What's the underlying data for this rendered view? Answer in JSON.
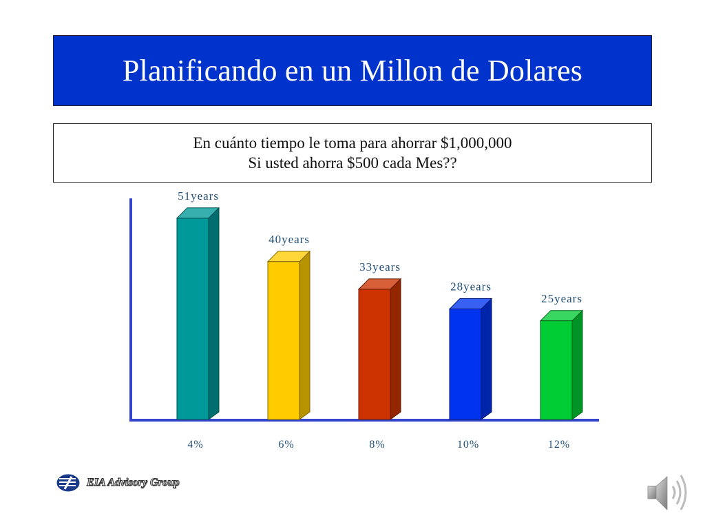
{
  "slide": {
    "title": "Planificando en un Millon de Dolares",
    "subtitle_line1": "En cuánto tiempo le toma para ahorrar $1,000,000",
    "subtitle_line2": "Si usted ahorra $500 cada Mes??"
  },
  "chart_data": {
    "type": "bar",
    "title": "",
    "xlabel": "",
    "ylabel": "",
    "ylim": [
      0,
      60
    ],
    "categories": [
      "4%",
      "6%",
      "8%",
      "10%",
      "12%"
    ],
    "values": [
      51,
      40,
      33,
      28,
      25
    ],
    "data_labels": [
      "51years",
      "40years",
      "33years",
      "28years",
      "25years"
    ],
    "colors": [
      "#009999",
      "#ffcc00",
      "#cc3300",
      "#0033ee",
      "#00cc33"
    ],
    "grid": false,
    "legend": "none"
  },
  "footer": {
    "logo_text": "EIA Advisory Group",
    "logo_icon": "eia-logo-icon",
    "audio_icon": "speaker-icon"
  }
}
